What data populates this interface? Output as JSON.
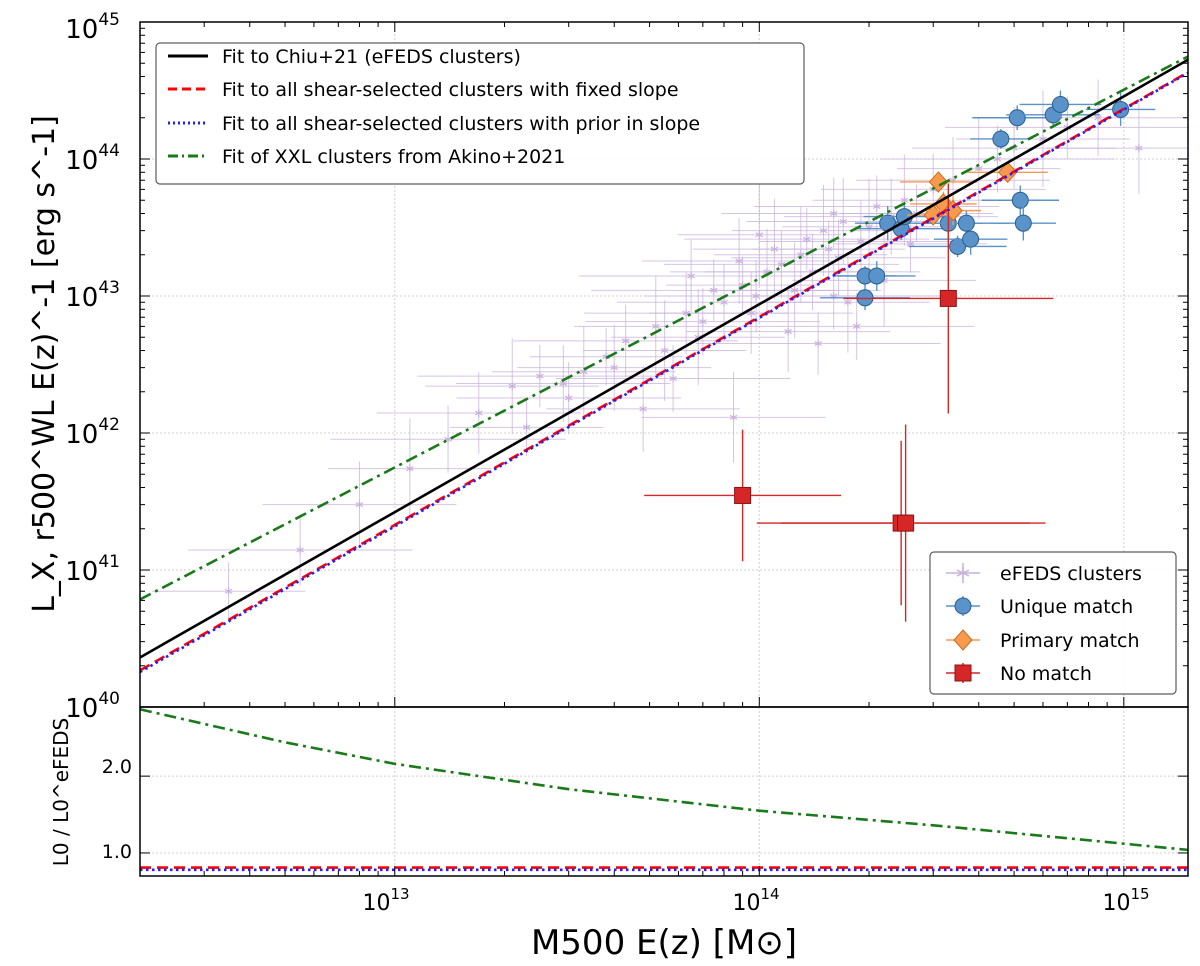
{
  "chart_data": [
    {
      "type": "scatter",
      "panel": "main",
      "xlabel": "M500 E(z)  [M⊙]",
      "ylabel": "L_X, r500^WL E(z)^-1  [erg s^-1]",
      "xscale": "log",
      "yscale": "log",
      "xlim": [
        2000000000000.0,
        1500000000000000.0
      ],
      "ylim": [
        1e+40,
        1e+45
      ],
      "grid": true,
      "x_ticks": [
        {
          "value": 10000000000000.0,
          "base": "10",
          "exp": "13"
        },
        {
          "value": 100000000000000.0,
          "base": "10",
          "exp": "14"
        },
        {
          "value": 1000000000000000.0,
          "base": "10",
          "exp": "15"
        }
      ],
      "y_ticks": [
        {
          "value": 1e+40,
          "base": "10",
          "exp": "40"
        },
        {
          "value": 1e+41,
          "base": "10",
          "exp": "41"
        },
        {
          "value": 1e+42,
          "base": "10",
          "exp": "42"
        },
        {
          "value": 1e+43,
          "base": "10",
          "exp": "43"
        },
        {
          "value": 1e+44,
          "base": "10",
          "exp": "44"
        },
        {
          "value": 1e+45,
          "base": "10",
          "exp": "45"
        }
      ],
      "lines": [
        {
          "name": "Fit to Chiu+21 (eFEDS clusters)",
          "color": "#000000",
          "style": "solid",
          "x": [
            2000000000000.0,
            1500000000000000.0
          ],
          "y": [
            2.3e+40,
            5.3e+44
          ]
        },
        {
          "name": "Fit to all shear-selected clusters with fixed slope",
          "color": "#ff0000",
          "style": "dashed",
          "x": [
            2000000000000.0,
            1500000000000000.0
          ],
          "y": [
            1.85e+40,
            4.3e+44
          ]
        },
        {
          "name": "Fit to all shear-selected clusters with prior in slope",
          "color": "#1f1fff",
          "style": "dotted",
          "x": [
            2000000000000.0,
            1500000000000000.0
          ],
          "y": [
            1.8e+40,
            4.25e+44
          ]
        },
        {
          "name": "Fit of XXL clusters from Akino+2021",
          "color": "#1a7a1a",
          "style": "dashdot",
          "x": [
            2000000000000.0,
            1500000000000000.0
          ],
          "y": [
            6.1e+40,
            5.6e+44
          ]
        }
      ],
      "series": [
        {
          "name": "eFEDS clusters",
          "color": "#c9b1dd",
          "marker": "star",
          "points": [
            [
              3500000000000.0,
              7e+40
            ],
            [
              5500000000000.0,
              1.4e+41
            ],
            [
              8000000000000.0,
              3e+41
            ],
            [
              11000000000000.0,
              5.5e+41
            ],
            [
              14000000000000.0,
              9e+41
            ],
            [
              17000000000000.0,
              1.4e+42
            ],
            [
              21000000000000.0,
              2.2e+42
            ],
            [
              25000000000000.0,
              2.6e+42
            ],
            [
              29000000000000.0,
              2.3e+42
            ],
            [
              33000000000000.0,
              2.8e+42
            ],
            [
              38000000000000.0,
              3.6e+42
            ],
            [
              43000000000000.0,
              4.7e+42
            ],
            [
              48000000000000.0,
              1.5e+42
            ],
            [
              52000000000000.0,
              6e+42
            ],
            [
              58000000000000.0,
              2.5e+42
            ],
            [
              63000000000000.0,
              7.5e+42
            ],
            [
              68000000000000.0,
              5e+42
            ],
            [
              75000000000000.0,
              1.1e+43
            ],
            [
              80000000000000.0,
              9e+42
            ],
            [
              85000000000000.0,
              1.3e+42
            ],
            [
              90000000000000.0,
              1.2e+43
            ],
            [
              98000000000000.0,
              1e+43
            ],
            [
              105000000000000.0,
              1.5e+43
            ],
            [
              110000000000000.0,
              2.2e+43
            ],
            [
              115000000000000.0,
              1.7e+43
            ],
            [
              120000000000000.0,
              5.5e+42
            ],
            [
              130000000000000.0,
              2e+43
            ],
            [
              135000000000000.0,
              2.6e+43
            ],
            [
              140000000000000.0,
              1.5e+43
            ],
            [
              150000000000000.0,
              3e+43
            ],
            [
              155000000000000.0,
              2.2e+43
            ],
            [
              160000000000000.0,
              4e+43
            ],
            [
              170000000000000.0,
              3.5e+43
            ],
            [
              175000000000000.0,
              9e+42
            ],
            [
              185000000000000.0,
              6e+42
            ],
            [
              190000000000000.0,
              2.5e+43
            ],
            [
              200000000000000.0,
              3.2e+43
            ],
            [
              210000000000000.0,
              4.5e+43
            ],
            [
              230000000000000.0,
              3.8e+43
            ],
            [
              250000000000000.0,
              5e+43
            ],
            [
              270000000000000.0,
              4e+43
            ],
            [
              300000000000000.0,
              6e+43
            ],
            [
              340000000000000.0,
              7e+43
            ],
            [
              400000000000000.0,
              8.5e+43
            ],
            [
              450000000000000.0,
              1e+44
            ],
            [
              500000000000000.0,
              1.2e+44
            ],
            [
              600000000000000.0,
              1.4e+44
            ],
            [
              700000000000000.0,
              1.7e+44
            ],
            [
              850000000000000.0,
              2e+44
            ],
            [
              1100000000000000.0,
              1.2e+44
            ],
            [
              23000000000000.0,
              1.1e+42
            ],
            [
              30000000000000.0,
              1.8e+42
            ],
            [
              40000000000000.0,
              3e+42
            ],
            [
              55000000000000.0,
              4e+42
            ],
            [
              70000000000000.0,
              6.5e+42
            ],
            [
              95000000000000.0,
              7.5e+42
            ],
            [
              125000000000000.0,
              1.1e+43
            ],
            [
              145000000000000.0,
              4.5e+42
            ],
            [
              165000000000000.0,
              1.9e+43
            ],
            [
              220000000000000.0,
              1.3e+43
            ],
            [
              260000000000000.0,
              2.4e+43
            ],
            [
              65000000000000.0,
              1.4e+43
            ],
            [
              88000000000000.0,
              1.8e+43
            ],
            [
              100000000000000.0,
              2.8e+43
            ],
            [
              160000000000000.0,
              1e+43
            ]
          ]
        },
        {
          "name": "Unique match",
          "color": "#5a93c9",
          "marker": "circle",
          "points": [
            [
              195000000000000.0,
              1.4e+43
            ],
            [
              195000000000000.0,
              9.7e+42
            ],
            [
              210000000000000.0,
              1.4e+43
            ],
            [
              225000000000000.0,
              3.4e+43
            ],
            [
              245000000000000.0,
              3.1e+43
            ],
            [
              250000000000000.0,
              3.8e+43
            ],
            [
              330000000000000.0,
              3.4e+43
            ],
            [
              350000000000000.0,
              2.3e+43
            ],
            [
              370000000000000.0,
              3.4e+43
            ],
            [
              380000000000000.0,
              2.6e+43
            ],
            [
              460000000000000.0,
              1.4e+44
            ],
            [
              510000000000000.0,
              2e+44
            ],
            [
              520000000000000.0,
              5e+43
            ],
            [
              530000000000000.0,
              3.4e+43
            ],
            [
              640000000000000.0,
              2.1e+44
            ],
            [
              670000000000000.0,
              2.5e+44
            ],
            [
              980000000000000.0,
              2.3e+44
            ]
          ]
        },
        {
          "name": "Primary match",
          "color": "#f79a4e",
          "marker": "diamond",
          "points": [
            [
              300000000000000.0,
              3.9e+43
            ],
            [
              310000000000000.0,
              6.8e+43
            ],
            [
              320000000000000.0,
              4.7e+43
            ],
            [
              340000000000000.0,
              4.2e+43
            ],
            [
              480000000000000.0,
              8e+43
            ]
          ]
        },
        {
          "name": "No match",
          "color": "#d62728",
          "marker": "square",
          "points": [
            [
              90000000000000.0,
              3.5e+41
            ],
            [
              245000000000000.0,
              2.2e+41
            ],
            [
              252000000000000.0,
              2.2e+41
            ],
            [
              330000000000000.0,
              9.6e+42
            ]
          ]
        }
      ],
      "legend_main": {
        "location": "upper-left"
      },
      "legend_markers": {
        "location": "lower-right"
      }
    },
    {
      "type": "line",
      "panel": "ratio",
      "ylabel": "L0 / L0^eFEDS",
      "xscale": "log",
      "xlim": [
        2000000000000.0,
        1500000000000000.0
      ],
      "ylim": [
        0.7,
        2.9
      ],
      "grid": true,
      "y_ticks": [
        {
          "value": 1.0,
          "label": "1.0"
        },
        {
          "value": 2.0,
          "label": "2.0"
        }
      ],
      "series": [
        {
          "name": "Fit of XXL clusters from Akino+2021",
          "color": "#1a7a1a",
          "style": "dashdot",
          "x": [
            2000000000000.0,
            5000000000000.0,
            10000000000000.0,
            30000000000000.0,
            100000000000000.0,
            300000000000000.0,
            1500000000000000.0
          ],
          "y": [
            2.87,
            2.44,
            2.16,
            1.83,
            1.55,
            1.36,
            1.04
          ]
        },
        {
          "name": "Fit to all shear-selected clusters with fixed slope",
          "color": "#ff0000",
          "style": "dashed",
          "x": [
            2000000000000.0,
            1500000000000000.0
          ],
          "y": [
            0.81,
            0.81
          ]
        },
        {
          "name": "Fit to all shear-selected clusters with prior in slope",
          "color": "#1f1fff",
          "style": "dotted",
          "x": [
            2000000000000.0,
            1500000000000000.0
          ],
          "y": [
            0.78,
            0.78
          ]
        }
      ]
    }
  ]
}
